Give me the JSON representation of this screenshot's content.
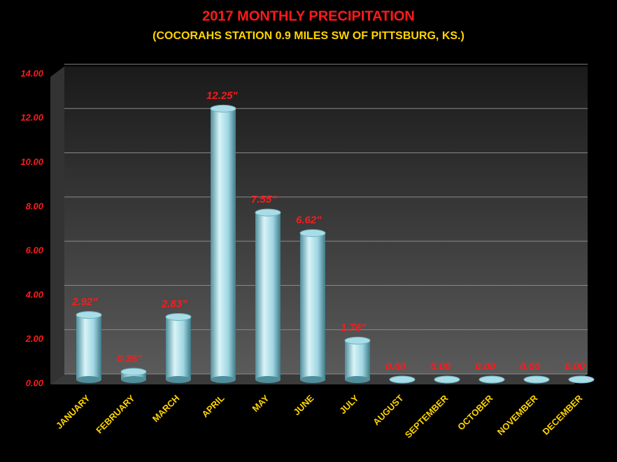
{
  "chart_data": {
    "type": "bar",
    "title": "2017 MONTHLY PRECIPITATION",
    "subtitle": "(COCORAHS STATION 0.9 MILES SW OF PITTSBURG, KS.)",
    "categories": [
      "JANUARY",
      "FEBRUARY",
      "MARCH",
      "APRIL",
      "MAY",
      "JUNE",
      "JULY",
      "AUGUST",
      "SEPTEMBER",
      "OCTOBER",
      "NOVEMBER",
      "DECEMBER"
    ],
    "values": [
      2.92,
      0.35,
      2.83,
      12.25,
      7.55,
      6.62,
      1.76,
      0,
      0,
      0,
      0,
      0
    ],
    "value_labels": [
      "2.92\"",
      "0.35\"",
      "2.83\"",
      "12.25\"",
      "7.55\"",
      "6.62\"",
      "1.76\"",
      "0.00",
      "0.00",
      "0.00",
      "0.00",
      "0.00"
    ],
    "color": "#a8dde8",
    "ylim": [
      0,
      14
    ],
    "yticks": [
      {
        "value": 0,
        "label": "0.00"
      },
      {
        "value": 2,
        "label": "2.00"
      },
      {
        "value": 4,
        "label": "4.00"
      },
      {
        "value": 6,
        "label": "6.00"
      },
      {
        "value": 8,
        "label": "8.00"
      },
      {
        "value": 10,
        "label": "10.00"
      },
      {
        "value": 12,
        "label": "12.00"
      },
      {
        "value": 14,
        "label": "14.00"
      }
    ],
    "grid": true
  }
}
